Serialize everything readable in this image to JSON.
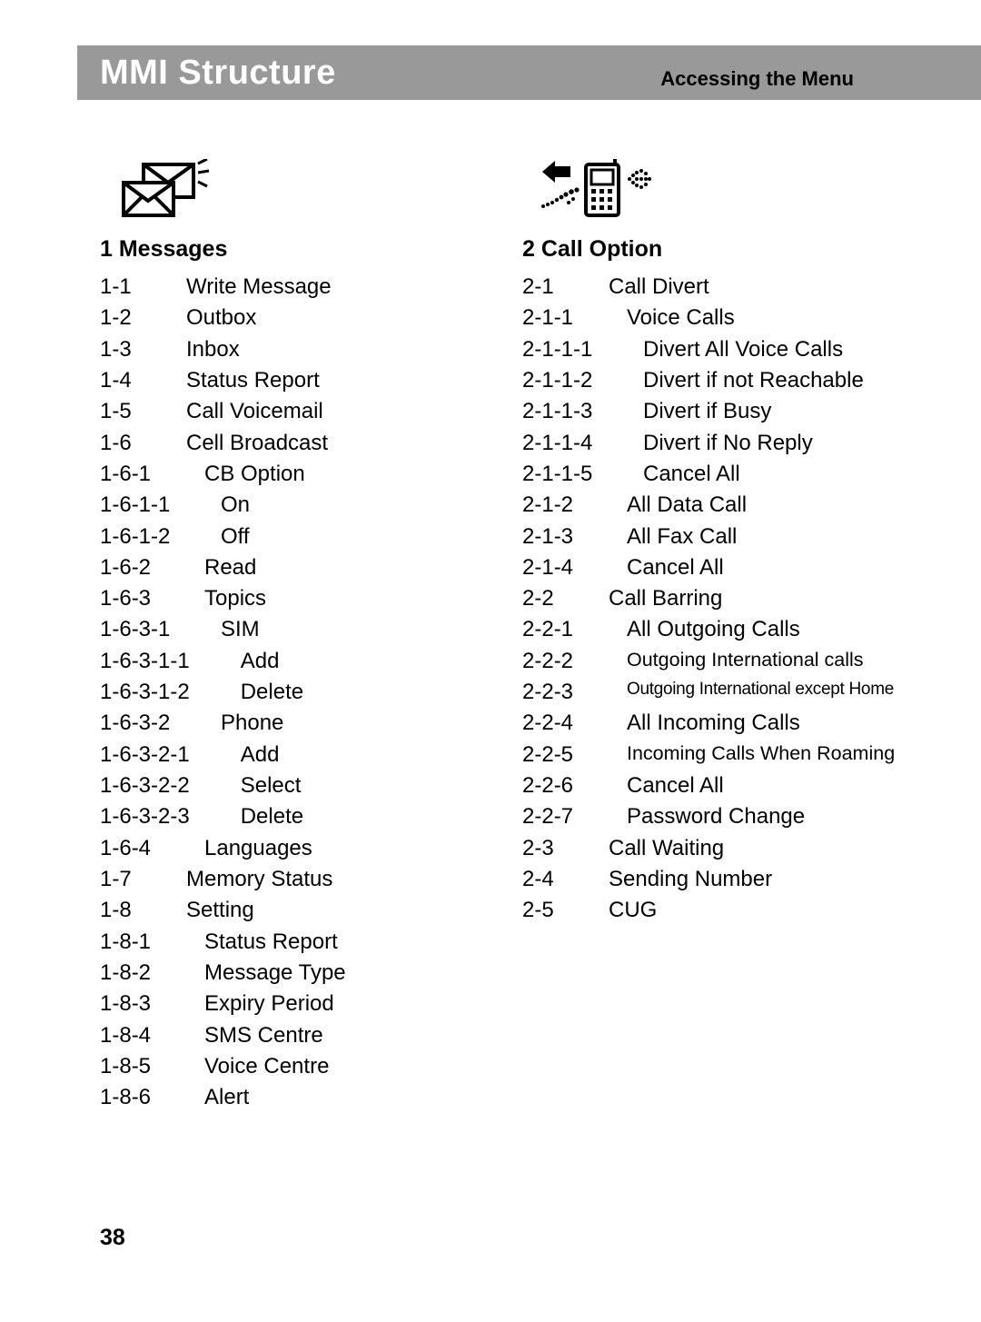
{
  "header": {
    "title": "MMI Structure",
    "subtitle": "Accessing the Menu",
    "bg_color": "#999999",
    "title_color": "#ffffff",
    "subtitle_color": "#000000"
  },
  "page_number": "38",
  "columns": [
    {
      "id": "messages",
      "icon": "envelope-icon",
      "title": "1  Messages",
      "items": [
        {
          "num": "1-1",
          "label": "Write Message",
          "depth": 0
        },
        {
          "num": "1-2",
          "label": "Outbox",
          "depth": 0
        },
        {
          "num": "1-3",
          "label": "Inbox",
          "depth": 0
        },
        {
          "num": "1-4",
          "label": "Status Report",
          "depth": 0
        },
        {
          "num": "1-5",
          "label": "Call Voicemail",
          "depth": 0
        },
        {
          "num": "1-6",
          "label": "Cell Broadcast",
          "depth": 0
        },
        {
          "num": "1-6-1",
          "label": "CB Option",
          "depth": 1
        },
        {
          "num": "1-6-1-1",
          "label": "On",
          "depth": 2
        },
        {
          "num": "1-6-1-2",
          "label": "Off",
          "depth": 2
        },
        {
          "num": "1-6-2",
          "label": "Read",
          "depth": 1
        },
        {
          "num": "1-6-3",
          "label": "Topics",
          "depth": 1
        },
        {
          "num": "1-6-3-1",
          "label": "SIM",
          "depth": 2
        },
        {
          "num": "1-6-3-1-1",
          "label": "Add",
          "depth": 3
        },
        {
          "num": "1-6-3-1-2",
          "label": "Delete",
          "depth": 3
        },
        {
          "num": "1-6-3-2",
          "label": "Phone",
          "depth": 2
        },
        {
          "num": "1-6-3-2-1",
          "label": "Add",
          "depth": 3
        },
        {
          "num": "1-6-3-2-2",
          "label": "Select",
          "depth": 3
        },
        {
          "num": "1-6-3-2-3",
          "label": "Delete",
          "depth": 3
        },
        {
          "num": "1-6-4",
          "label": "Languages",
          "depth": 1
        },
        {
          "num": "1-7",
          "label": "Memory Status",
          "depth": 0
        },
        {
          "num": "1-8",
          "label": "Setting",
          "depth": 0
        },
        {
          "num": "1-8-1",
          "label": "Status Report",
          "depth": 1
        },
        {
          "num": "1-8-2",
          "label": "Message Type",
          "depth": 1
        },
        {
          "num": "1-8-3",
          "label": "Expiry Period",
          "depth": 1
        },
        {
          "num": "1-8-4",
          "label": "SMS Centre",
          "depth": 1
        },
        {
          "num": "1-8-5",
          "label": "Voice Centre",
          "depth": 1
        },
        {
          "num": "1-8-6",
          "label": "Alert",
          "depth": 1
        }
      ]
    },
    {
      "id": "call-option",
      "icon": "phone-icon",
      "title": "2  Call Option",
      "items": [
        {
          "num": "2-1",
          "label": "Call Divert",
          "depth": 0
        },
        {
          "num": "2-1-1",
          "label": "Voice Calls",
          "depth": 1
        },
        {
          "num": "2-1-1-1",
          "label": "Divert All Voice Calls",
          "depth": 2
        },
        {
          "num": "2-1-1-2",
          "label": "Divert if not Reachable",
          "depth": 2
        },
        {
          "num": "2-1-1-3",
          "label": "Divert if Busy",
          "depth": 2
        },
        {
          "num": "2-1-1-4",
          "label": "Divert if No Reply",
          "depth": 2
        },
        {
          "num": "2-1-1-5",
          "label": "Cancel All",
          "depth": 2
        },
        {
          "num": "2-1-2",
          "label": "All Data Call",
          "depth": 1
        },
        {
          "num": "2-1-3",
          "label": "All Fax Call",
          "depth": 1
        },
        {
          "num": "2-1-4",
          "label": "Cancel All",
          "depth": 1
        },
        {
          "num": "2-2",
          "label": "Call Barring",
          "depth": 0
        },
        {
          "num": "2-2-1",
          "label": "All Outgoing Calls",
          "depth": 1
        },
        {
          "num": "2-2-2",
          "label": "Outgoing International calls",
          "depth": 1,
          "size": "sm"
        },
        {
          "num": "2-2-3",
          "label": "Outgoing International except Home",
          "depth": 1,
          "size": "xs"
        },
        {
          "num": "2-2-4",
          "label": "All Incoming Calls",
          "depth": 1
        },
        {
          "num": "2-2-5",
          "label": "Incoming Calls When Roaming",
          "depth": 1,
          "size": "sm"
        },
        {
          "num": "2-2-6",
          "label": "Cancel All",
          "depth": 1
        },
        {
          "num": "2-2-7",
          "label": "Password Change",
          "depth": 1
        },
        {
          "num": "2-3",
          "label": "Call Waiting",
          "depth": 0
        },
        {
          "num": "2-4",
          "label": "Sending Number",
          "depth": 0
        },
        {
          "num": "2-5",
          "label": "CUG",
          "depth": 0
        }
      ]
    }
  ]
}
